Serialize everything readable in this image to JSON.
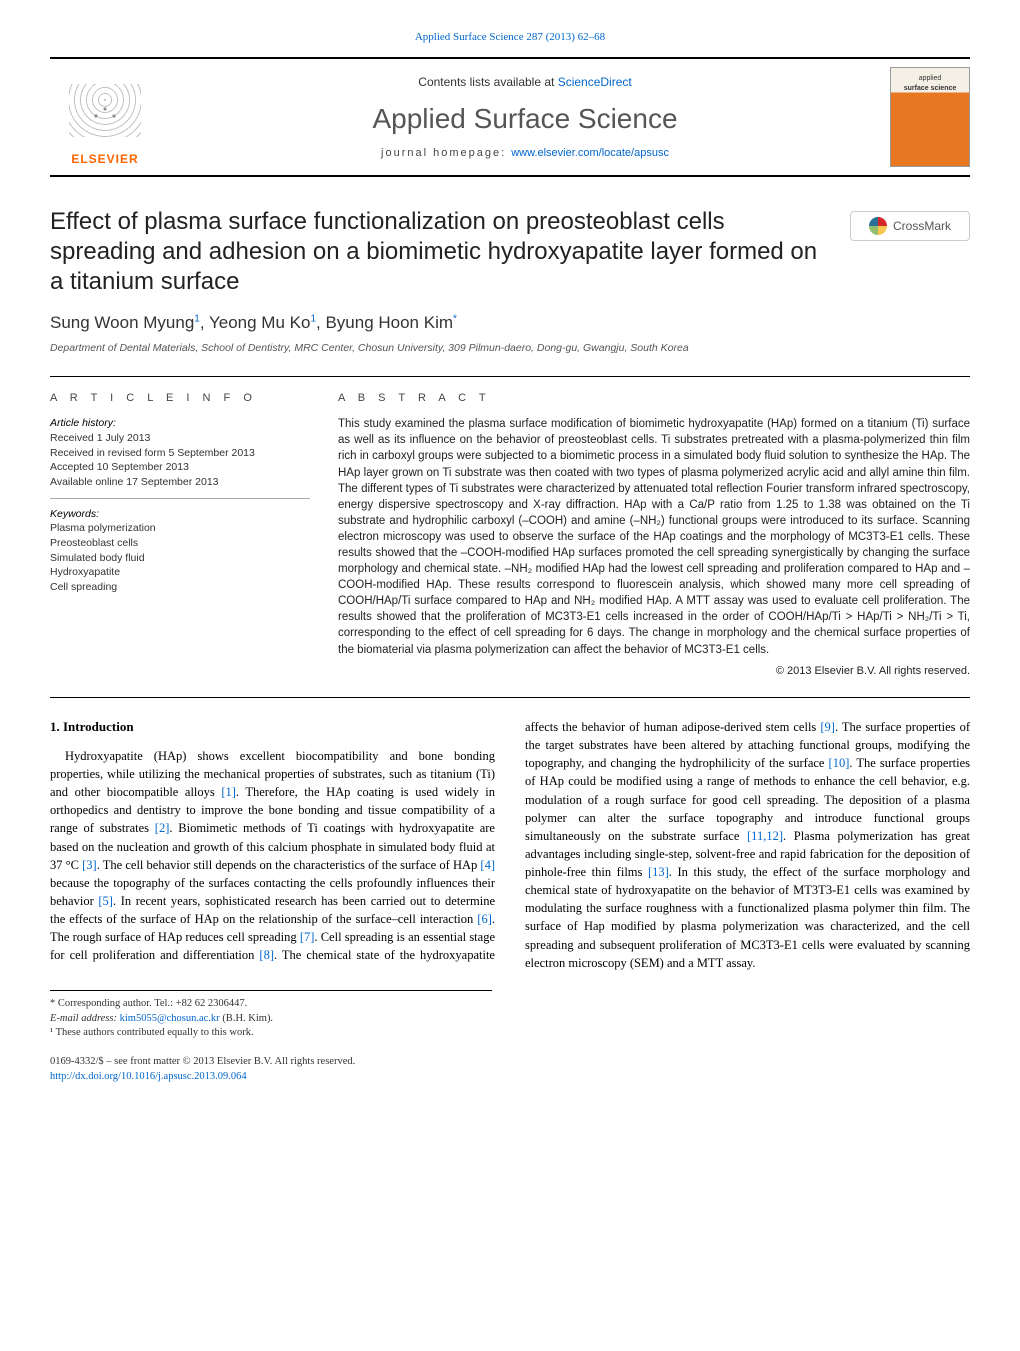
{
  "top_link": {
    "text": "Applied Surface Science 287 (2013) 62–68",
    "href_color": "#0066cc"
  },
  "header": {
    "contents_prefix": "Contents lists available at ",
    "contents_link": "ScienceDirect",
    "journal_name": "Applied Surface Science",
    "homepage_prefix": "journal homepage: ",
    "homepage_link": "www.elsevier.com/locate/apsusc",
    "publisher_name": "ELSEVIER",
    "cover_line1": "applied",
    "cover_line2": "surface science"
  },
  "crossmark_label": "CrossMark",
  "title": "Effect of plasma surface functionalization on preosteoblast cells spreading and adhesion on a biomimetic hydroxyapatite layer formed on a titanium surface",
  "authors_html": "Sung Woon Myung<sup>1</sup>, Yeong Mu Ko<sup>1</sup>, Byung Hoon Kim<sup>*</sup>",
  "affiliation": "Department of Dental Materials, School of Dentistry, MRC Center, Chosun University, 309 Pilmun-daero, Dong-gu, Gwangju, South Korea",
  "article_info": {
    "heading": "A R T I C L E   I N F O",
    "history_label": "Article history:",
    "history": [
      "Received 1 July 2013",
      "Received in revised form 5 September 2013",
      "Accepted 10 September 2013",
      "Available online 17 September 2013"
    ],
    "keywords_label": "Keywords:",
    "keywords": [
      "Plasma polymerization",
      "Preosteoblast cells",
      "Simulated body fluid",
      "Hydroxyapatite",
      "Cell spreading"
    ]
  },
  "abstract": {
    "heading": "A B S T R A C T",
    "text": "This study examined the plasma surface modification of biomimetic hydroxyapatite (HAp) formed on a titanium (Ti) surface as well as its influence on the behavior of preosteoblast cells. Ti substrates pretreated with a plasma-polymerized thin film rich in carboxyl groups were subjected to a biomimetic process in a simulated body fluid solution to synthesize the HAp. The HAp layer grown on Ti substrate was then coated with two types of plasma polymerized acrylic acid and allyl amine thin film. The different types of Ti substrates were characterized by attenuated total reflection Fourier transform infrared spectroscopy, energy dispersive spectroscopy and X-ray diffraction. HAp with a Ca/P ratio from 1.25 to 1.38 was obtained on the Ti substrate and hydrophilic carboxyl (–COOH) and amine (–NH₂) functional groups were introduced to its surface. Scanning electron microscopy was used to observe the surface of the HAp coatings and the morphology of MC3T3-E1 cells. These results showed that the –COOH-modified HAp surfaces promoted the cell spreading synergistically by changing the surface morphology and chemical state. –NH₂ modified HAp had the lowest cell spreading and proliferation compared to HAp and –COOH-modified HAp. These results correspond to fluorescein analysis, which showed many more cell spreading of COOH/HAp/Ti surface compared to HAp and NH₂ modified HAp. A MTT assay was used to evaluate cell proliferation. The results showed that the proliferation of MC3T3-E1 cells increased in the order of COOH/HAp/Ti > HAp/Ti > NH₂/Ti > Ti, corresponding to the effect of cell spreading for 6 days. The change in morphology and the chemical surface properties of the biomaterial via plasma polymerization can affect the behavior of MC3T3-E1 cells.",
    "copyright": "© 2013 Elsevier B.V. All rights reserved."
  },
  "section1": {
    "heading": "1.  Introduction",
    "p1_pre": "Hydroxyapatite (HAp) shows excellent biocompatibility and bone bonding properties, while utilizing the mechanical properties of substrates, such as titanium (Ti) and other biocompatible alloys ",
    "r1": "[1]",
    "p1_a": ". Therefore, the HAp coating is used widely in orthopedics and dentistry to improve the bone bonding and tissue compatibility of a range of substrates ",
    "r2": "[2]",
    "p1_b": ". Biomimetic methods of Ti coatings with hydroxyapatite are based on the nucleation and growth of this calcium phosphate in simulated body fluid at 37 °C ",
    "r3": "[3]",
    "p1_c": ". The cell behavior still depends on the characteristics of the surface of HAp ",
    "r4": "[4]",
    "p1_d": " because the topography of the surfaces contacting the cells profoundly influences their behavior ",
    "r5": "[5]",
    "p1_e": ". In recent years, sophisticated research has been carried out to determine the effects of the surface of HAp on the relationship of the surface–cell interaction ",
    "r6": "[6]",
    "p1_f": ". The rough surface ",
    "p2_pre": "of HAp reduces cell spreading ",
    "r7": "[7]",
    "p2_a": ". Cell spreading is an essential stage for cell proliferation and differentiation ",
    "r8": "[8]",
    "p2_b": ". The chemical state of the hydroxyapatite affects the behavior of human adipose-derived stem cells ",
    "r9": "[9]",
    "p2_c": ". The surface properties of the target substrates have been altered by attaching functional groups, modifying the topography, and changing the hydrophilicity of the surface ",
    "r10": "[10]",
    "p2_d": ". The surface properties of HAp could be modified using a range of methods to enhance the cell behavior, e.g. modulation of a rough surface for good cell spreading. The deposition of a plasma polymer can alter the surface topography and introduce functional groups simultaneously on the substrate surface ",
    "r11": "[11,12]",
    "p2_e": ". Plasma polymerization has great advantages including single-step, solvent-free and rapid fabrication for the deposition of pinhole-free thin films ",
    "r13": "[13]",
    "p2_f": ". In this study, the effect of the surface morphology and chemical state of hydroxyapatite on the behavior of MT3T3-E1 cells was examined by modulating the surface roughness with a functionalized plasma polymer thin film. The surface of Hap modified by plasma polymerization was characterized, and the cell spreading and subsequent proliferation of MC3T3-E1 cells were evaluated by scanning electron microscopy (SEM) and a MTT assay."
  },
  "footnotes": {
    "corr": "* Corresponding author. Tel.: +82 62 2306447.",
    "email_label": "E-mail address: ",
    "email": "kim5055@chosun.ac.kr",
    "email_suffix": " (B.H. Kim).",
    "equal": "¹ These authors contributed equally to this work."
  },
  "bottom": {
    "line1": "0169-4332/$ – see front matter © 2013 Elsevier B.V. All rights reserved.",
    "doi": "http://dx.doi.org/10.1016/j.apsusc.2013.09.064"
  },
  "colors": {
    "link": "#0066cc",
    "rule": "#000000",
    "publisher": "#ff6600"
  }
}
